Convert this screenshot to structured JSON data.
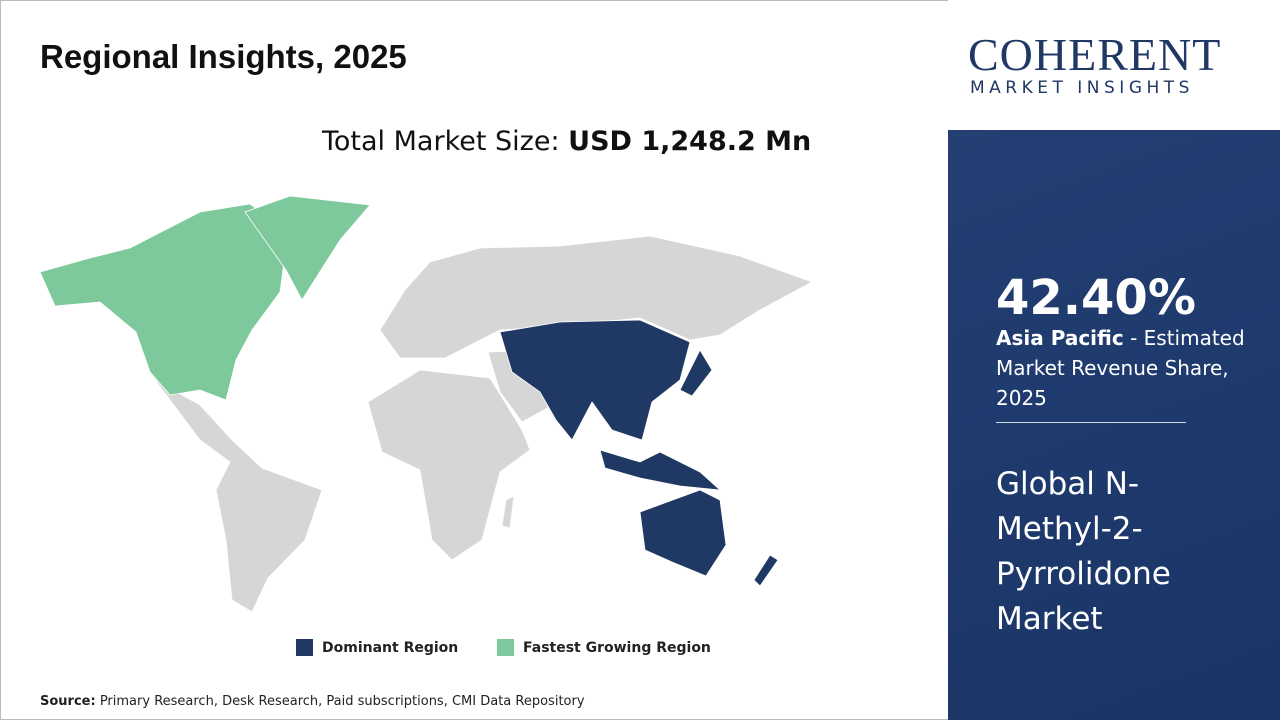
{
  "header": {
    "title": "Regional Insights, 2025"
  },
  "market_size": {
    "label": "Total Market Size: ",
    "value": "USD 1,248.2 Mn"
  },
  "logo": {
    "name": "COHERENT",
    "tagline": "MARKET INSIGHTS"
  },
  "highlight": {
    "share": "42.40%",
    "region": "Asia Pacific",
    "description": " - Estimated Market Revenue Share, 2025"
  },
  "market_name": "Global N-Methyl-2-Pyrrolidone Market",
  "legend": [
    {
      "label": "Dominant Region",
      "color": "#1f3864"
    },
    {
      "label": "Fastest Growing Region",
      "color": "#7dc99b"
    }
  ],
  "source": {
    "label": "Source:",
    "text": " Primary Research, Desk Research, Paid subscriptions, CMI Data Repository"
  }
}
